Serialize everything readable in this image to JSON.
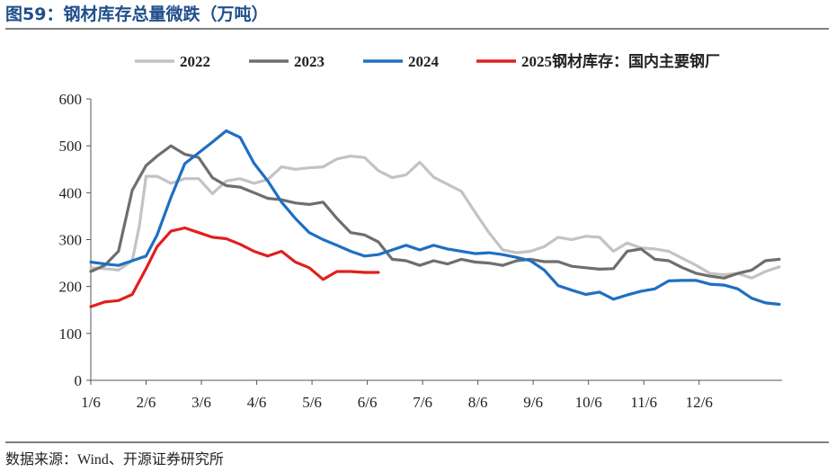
{
  "header": {
    "title": "图59：钢材库存总量微跌（万吨）"
  },
  "footer": {
    "source": "数据来源：Wind、开源证券研究所"
  },
  "chart_data": {
    "type": "line",
    "title": "图59：钢材库存总量微跌（万吨）",
    "xlabel": "",
    "ylabel": "",
    "legend_position": "top",
    "ylim": [
      0,
      600
    ],
    "yticks": [
      0,
      100,
      200,
      300,
      400,
      500,
      600
    ],
    "xticks": [
      "1/6",
      "2/6",
      "3/6",
      "4/6",
      "5/6",
      "6/6",
      "7/6",
      "8/6",
      "9/6",
      "10/6",
      "11/6",
      "12/6"
    ],
    "grid": false,
    "series": [
      {
        "name": "2022",
        "color": "#c3c3c3",
        "x": [
          0,
          0.25,
          0.5,
          0.75,
          0.88,
          1.0,
          1.2,
          1.45,
          1.7,
          1.95,
          2.2,
          2.45,
          2.7,
          2.95,
          3.2,
          3.45,
          3.7,
          3.95,
          4.2,
          4.45,
          4.7,
          4.95,
          5.2,
          5.45,
          5.7,
          5.95,
          6.2,
          6.45,
          6.7,
          6.95,
          7.2,
          7.45,
          7.7,
          7.95,
          8.2,
          8.45,
          8.7,
          8.95,
          9.2,
          9.45,
          9.7,
          9.95,
          10.2,
          10.45,
          10.7,
          10.95,
          11.2,
          11.45,
          11.7
        ],
        "values": [
          240,
          238,
          235,
          255,
          330,
          435,
          435,
          420,
          430,
          430,
          398,
          425,
          430,
          420,
          428,
          455,
          450,
          453,
          455,
          472,
          478,
          475,
          447,
          432,
          438,
          465,
          433,
          418,
          403,
          358,
          315,
          278,
          272,
          275,
          285,
          305,
          300,
          307,
          305,
          275,
          293,
          282,
          280,
          275,
          260,
          245,
          228,
          225,
          228
        ]
      },
      {
        "name": "2023",
        "color": "#6e6e6e",
        "x": [
          0,
          0.25,
          0.5,
          0.75,
          1.0,
          1.2,
          1.45,
          1.7,
          1.95,
          2.2,
          2.45,
          2.7,
          2.95,
          3.2,
          3.45,
          3.7,
          3.95,
          4.2,
          4.45,
          4.7,
          4.95,
          5.2,
          5.45,
          5.7,
          5.95,
          6.2,
          6.45,
          6.7,
          6.95,
          7.2,
          7.45,
          7.7,
          7.95,
          8.2,
          8.45,
          8.7,
          8.95,
          9.2,
          9.45,
          9.7,
          9.95,
          10.2,
          10.45,
          10.7,
          10.95,
          11.2,
          11.45,
          11.7
        ],
        "values": [
          232,
          245,
          275,
          405,
          458,
          478,
          500,
          482,
          475,
          432,
          415,
          412,
          400,
          388,
          385,
          378,
          375,
          380,
          345,
          315,
          310,
          295,
          258,
          255,
          245,
          255,
          248,
          258,
          252,
          250,
          245,
          255,
          258,
          253,
          253,
          243,
          240,
          237,
          238,
          275,
          280,
          258,
          255,
          240,
          228,
          222,
          218,
          228
        ]
      },
      {
        "name": "2024",
        "color": "#1f6fc2",
        "x": [
          0,
          0.25,
          0.5,
          0.75,
          1.0,
          1.2,
          1.45,
          1.7,
          1.95,
          2.2,
          2.45,
          2.7,
          2.95,
          3.2,
          3.45,
          3.7,
          3.95,
          4.2,
          4.45,
          4.7,
          4.95,
          5.2,
          5.45,
          5.7,
          5.95,
          6.2,
          6.45,
          6.7,
          6.95,
          7.2,
          7.45,
          7.7,
          7.95,
          8.2,
          8.45,
          8.7,
          8.95,
          9.2,
          9.45,
          9.7,
          9.95,
          10.2,
          10.45,
          10.7,
          10.95,
          11.2,
          11.45,
          11.7
        ],
        "values": [
          252,
          248,
          245,
          255,
          265,
          310,
          390,
          462,
          485,
          508,
          532,
          518,
          463,
          425,
          380,
          345,
          315,
          300,
          288,
          275,
          265,
          268,
          278,
          288,
          278,
          288,
          280,
          275,
          270,
          272,
          268,
          262,
          255,
          235,
          202,
          192,
          183,
          188,
          173,
          182,
          190,
          195,
          212,
          213,
          213,
          205,
          203,
          195
        ]
      },
      {
        "name": "2025钢材库存：国内主要钢厂",
        "color": "#e0201f",
        "x": [
          0,
          0.25,
          0.5,
          0.75,
          1.0,
          1.2,
          1.45,
          1.7,
          1.95,
          2.2,
          2.45,
          2.7,
          2.95,
          3.2,
          3.45,
          3.7,
          3.95,
          4.2,
          4.45,
          4.7,
          4.95,
          5.2
        ],
        "values": [
          157,
          167,
          170,
          183,
          238,
          285,
          318,
          325,
          315,
          305,
          302,
          290,
          275,
          265,
          275,
          252,
          240,
          215,
          232,
          232,
          230,
          230
        ]
      }
    ],
    "extend_tail": {
      "2024": [
        [
          11.95,
          175
        ],
        [
          12.2,
          165
        ],
        [
          12.45,
          162
        ]
      ],
      "2023": [
        [
          11.95,
          235
        ],
        [
          12.2,
          255
        ],
        [
          12.45,
          258
        ]
      ],
      "2022": [
        [
          11.95,
          218
        ],
        [
          12.2,
          232
        ],
        [
          12.45,
          242
        ]
      ]
    }
  }
}
